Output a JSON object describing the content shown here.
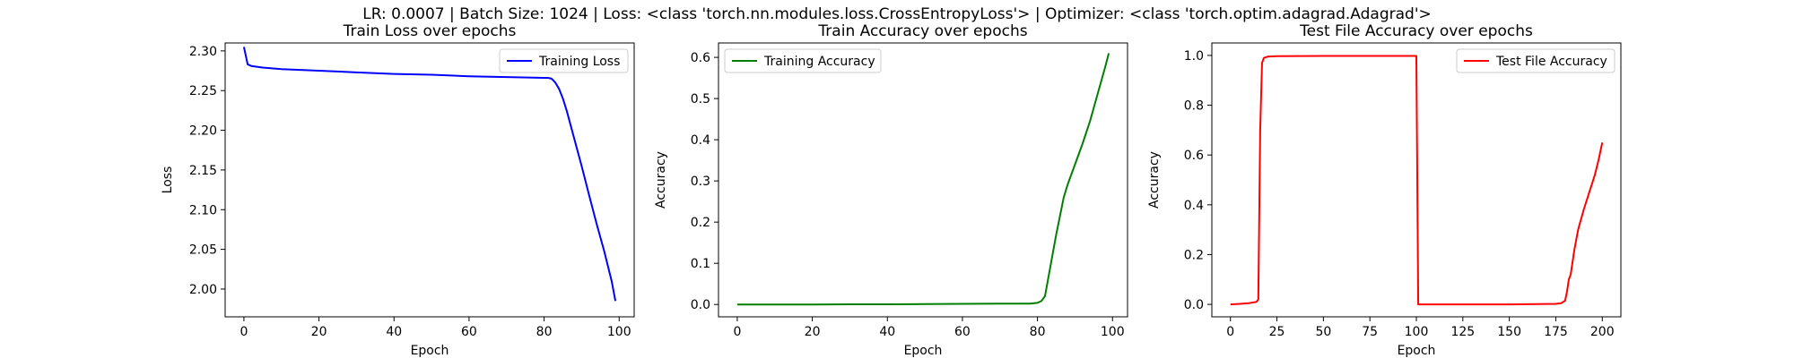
{
  "figure": {
    "suptitle": "LR: 0.0007 | Batch Size: 1024 | Loss: <class 'torch.nn.modules.loss.CrossEntropyLoss'> | Optimizer: <class 'torch.optim.adagrad.Adagrad'>"
  },
  "chart_data": [
    {
      "type": "line",
      "title": "Train Loss over epochs",
      "xlabel": "Epoch",
      "ylabel": "Loss",
      "xlim": [
        -5,
        104
      ],
      "ylim": [
        1.965,
        2.31
      ],
      "xticks": [
        0,
        20,
        40,
        60,
        80,
        100
      ],
      "yticks": [
        2.0,
        2.05,
        2.1,
        2.15,
        2.2,
        2.25,
        2.3
      ],
      "ytick_format": 2,
      "legend_position": "upper right",
      "series": [
        {
          "name": "Training Loss",
          "color": "#0000ff",
          "x": [
            0,
            1,
            2,
            5,
            10,
            20,
            30,
            40,
            50,
            60,
            70,
            80,
            81,
            82,
            83,
            84,
            85,
            86,
            88,
            90,
            92,
            94,
            96,
            98,
            99
          ],
          "y": [
            2.305,
            2.283,
            2.281,
            2.279,
            2.277,
            2.275,
            2.273,
            2.271,
            2.27,
            2.268,
            2.267,
            2.266,
            2.266,
            2.265,
            2.26,
            2.252,
            2.24,
            2.225,
            2.19,
            2.155,
            2.118,
            2.082,
            2.048,
            2.01,
            1.985
          ]
        }
      ]
    },
    {
      "type": "line",
      "title": "Train Accuracy over epochs",
      "xlabel": "Epoch",
      "ylabel": "Accuracy",
      "xlim": [
        -5,
        104
      ],
      "ylim": [
        -0.03,
        0.635
      ],
      "xticks": [
        0,
        20,
        40,
        60,
        80,
        100
      ],
      "yticks": [
        0.0,
        0.1,
        0.2,
        0.3,
        0.4,
        0.5,
        0.6
      ],
      "ytick_format": 1,
      "legend_position": "upper left",
      "series": [
        {
          "name": "Training Accuracy",
          "color": "#008000",
          "x": [
            0,
            10,
            20,
            30,
            40,
            50,
            60,
            70,
            78,
            80,
            81,
            82,
            83,
            84,
            85,
            86,
            87,
            88,
            90,
            92,
            94,
            96,
            98,
            99
          ],
          "y": [
            0.0,
            0.0,
            0.0,
            0.0005,
            0.0005,
            0.001,
            0.0015,
            0.002,
            0.002,
            0.004,
            0.008,
            0.02,
            0.07,
            0.12,
            0.17,
            0.215,
            0.26,
            0.29,
            0.34,
            0.39,
            0.445,
            0.51,
            0.575,
            0.61
          ]
        }
      ]
    },
    {
      "type": "line",
      "title": "Test File Accuracy over epochs",
      "xlabel": "Epoch",
      "ylabel": "Accuracy",
      "xlim": [
        -10,
        210
      ],
      "ylim": [
        -0.05,
        1.05
      ],
      "xticks": [
        0,
        25,
        50,
        75,
        100,
        125,
        150,
        175,
        200
      ],
      "yticks": [
        0.0,
        0.2,
        0.4,
        0.6,
        0.8,
        1.0
      ],
      "ytick_format": 1,
      "legend_position": "upper right",
      "series": [
        {
          "name": "Test File Accuracy",
          "color": "#ff0000",
          "x": [
            0,
            5,
            10,
            14,
            15,
            16,
            17,
            18,
            20,
            25,
            50,
            75,
            99,
            100,
            101,
            110,
            150,
            175,
            178,
            180,
            181,
            182,
            183,
            185,
            187,
            190,
            193,
            196,
            198,
            200
          ],
          "y": [
            0.0,
            0.002,
            0.005,
            0.01,
            0.02,
            0.7,
            0.97,
            0.99,
            0.995,
            0.997,
            0.998,
            0.998,
            0.998,
            0.998,
            0.0,
            0.0,
            0.0,
            0.002,
            0.005,
            0.015,
            0.05,
            0.1,
            0.12,
            0.22,
            0.3,
            0.38,
            0.45,
            0.52,
            0.58,
            0.65
          ]
        }
      ]
    }
  ]
}
